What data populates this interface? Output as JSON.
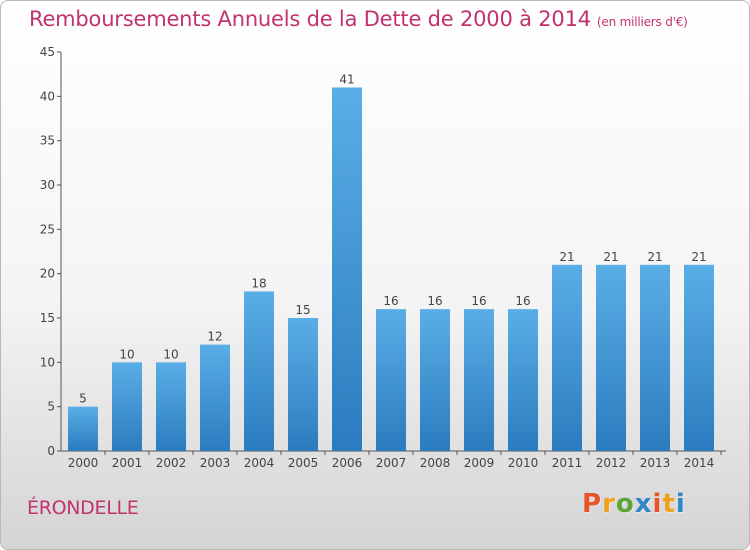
{
  "header": {
    "title": "Remboursements Annuels de la Dette de 2000 à 2014",
    "unit": "(en milliers d'€)"
  },
  "footer": {
    "town": "ÉRONDELLE",
    "logo_text": "Proxiti"
  },
  "colors": {
    "title": "#c0336e",
    "bar_light": "#5aaee6",
    "bar_dark": "#2b7cbf",
    "logo_letters": [
      "#e8542a",
      "#f0a21b",
      "#5aa637",
      "#2e87c8",
      "#e8542a",
      "#f0a21b",
      "#2e87c8"
    ]
  },
  "chart_data": {
    "type": "bar",
    "title": "Remboursements Annuels de la Dette de 2000 à 2014",
    "subtitle": "(en milliers d'€)",
    "categories": [
      "2000",
      "2001",
      "2002",
      "2003",
      "2004",
      "2005",
      "2006",
      "2007",
      "2008",
      "2009",
      "2010",
      "2011",
      "2012",
      "2013",
      "2014"
    ],
    "values": [
      5,
      10,
      10,
      12,
      18,
      15,
      41,
      16,
      16,
      16,
      16,
      21,
      21,
      21,
      21
    ],
    "ylim": [
      0,
      45
    ],
    "yticks": [
      0,
      5,
      10,
      15,
      20,
      25,
      30,
      35,
      40,
      45
    ],
    "grid": false,
    "legend": "none"
  }
}
